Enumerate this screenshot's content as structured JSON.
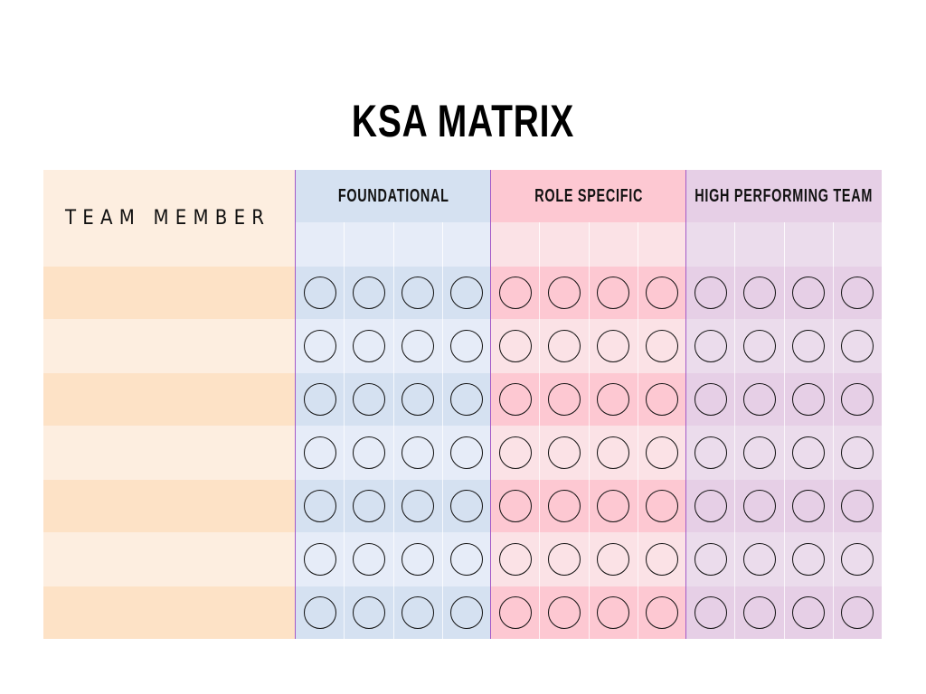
{
  "title": "KSA MATRIX",
  "team_member_header": "TEAM MEMBER",
  "groups": [
    {
      "label": "FOUNDATIONAL",
      "head_color": "#d5e1f1",
      "sub_color": "#e6ecf8",
      "dark_color": "#d5e1f1",
      "light_color": "#e6ecf8"
    },
    {
      "label": "ROLE SPECIFIC",
      "head_color": "#fdc8d2",
      "sub_color": "#fbe2e6",
      "dark_color": "#fdc8d2",
      "light_color": "#fbe2e6"
    },
    {
      "label": "HIGH PERFORMING TEAM",
      "head_color": "#e6cfe6",
      "sub_color": "#ebdcec",
      "dark_color": "#e6cfe6",
      "light_color": "#ebdcec"
    }
  ],
  "name_colors": {
    "dark": "#fde2c6",
    "light": "#fdeee0"
  },
  "rows": 7,
  "columns_per_group": 4
}
